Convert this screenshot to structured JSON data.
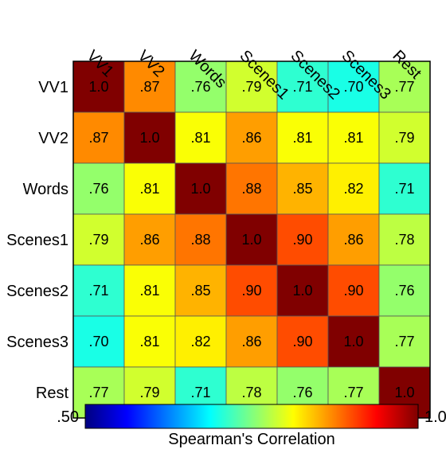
{
  "chart_data": {
    "type": "heatmap",
    "title": "",
    "x_categories": [
      "VV1",
      "VV2",
      "Words",
      "Scenes1",
      "Scenes2",
      "Scenes3",
      "Rest"
    ],
    "y_categories": [
      "VV1",
      "VV2",
      "Words",
      "Scenes1",
      "Scenes2",
      "Scenes3",
      "Rest"
    ],
    "values": [
      [
        1.0,
        0.87,
        0.76,
        0.79,
        0.71,
        0.7,
        0.77
      ],
      [
        0.87,
        1.0,
        0.81,
        0.86,
        0.81,
        0.81,
        0.79
      ],
      [
        0.76,
        0.81,
        1.0,
        0.88,
        0.85,
        0.82,
        0.71
      ],
      [
        0.79,
        0.86,
        0.88,
        1.0,
        0.9,
        0.86,
        0.78
      ],
      [
        0.71,
        0.81,
        0.85,
        0.9,
        1.0,
        0.9,
        0.76
      ],
      [
        0.7,
        0.81,
        0.82,
        0.86,
        0.9,
        1.0,
        0.77
      ],
      [
        0.77,
        0.79,
        0.71,
        0.78,
        0.76,
        0.77,
        1.0
      ]
    ],
    "cell_labels": [
      [
        "1.0",
        ".87",
        ".76",
        ".79",
        ".71",
        ".70",
        ".77"
      ],
      [
        ".87",
        "1.0",
        ".81",
        ".86",
        ".81",
        ".81",
        ".79"
      ],
      [
        ".76",
        ".81",
        "1.0",
        ".88",
        ".85",
        ".82",
        ".71"
      ],
      [
        ".79",
        ".86",
        ".88",
        "1.0",
        ".90",
        ".86",
        ".78"
      ],
      [
        ".71",
        ".81",
        ".85",
        ".90",
        "1.0",
        ".90",
        ".76"
      ],
      [
        ".70",
        ".81",
        ".82",
        ".86",
        ".90",
        "1.0",
        ".77"
      ],
      [
        ".77",
        ".79",
        ".71",
        ".78",
        ".76",
        ".77",
        "1.0"
      ]
    ],
    "colorbar": {
      "min": 0.5,
      "max": 1.0,
      "min_label": ".50",
      "max_label": "1.0",
      "label": "Spearman's Correlation",
      "colormap": "jet",
      "orientation": "horizontal"
    }
  }
}
